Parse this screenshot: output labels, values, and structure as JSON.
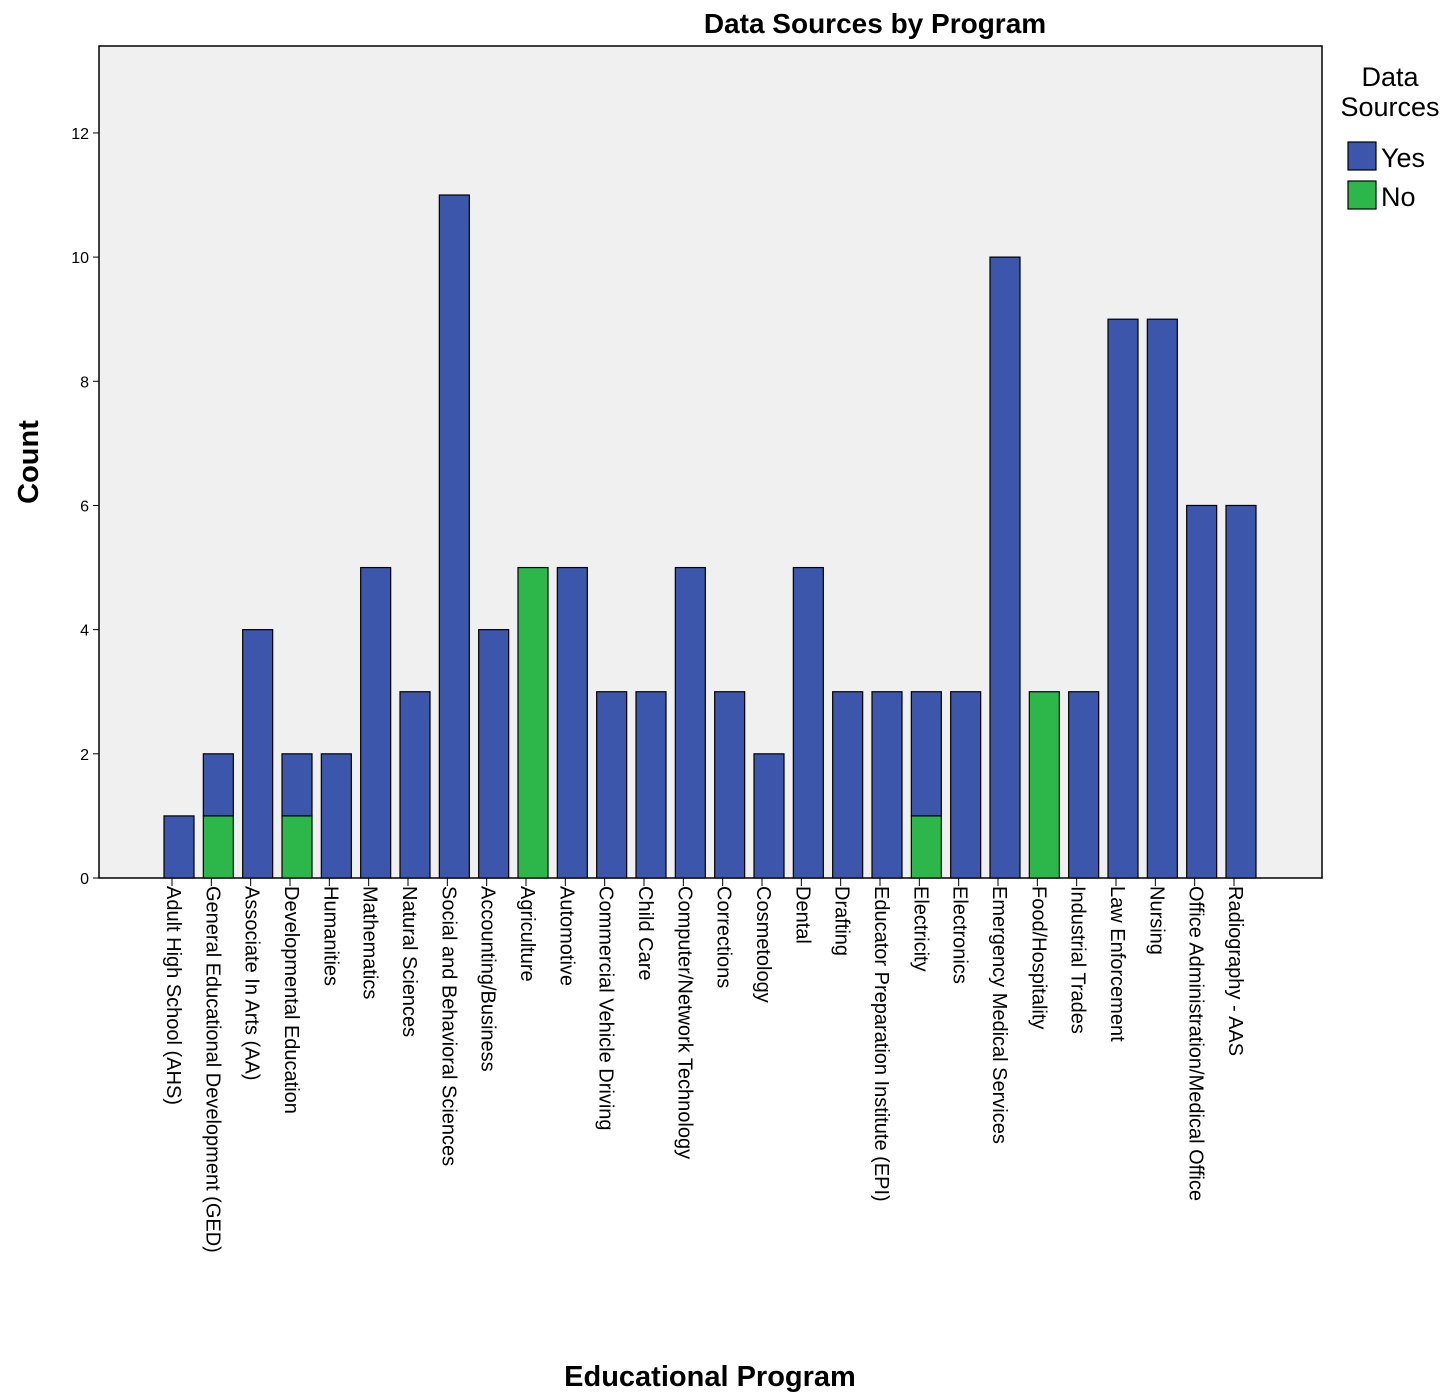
{
  "chart_data": {
    "type": "bar",
    "stacked": true,
    "title": "Data Sources by Program",
    "xlabel": "Educational Program",
    "ylabel": "Count",
    "ylim": [
      0,
      13.4
    ],
    "yticks": [
      0,
      2,
      4,
      6,
      8,
      10,
      12
    ],
    "grid": false,
    "legend": {
      "title_lines": [
        "Data",
        "Sources"
      ],
      "placement": "right"
    },
    "categories": [
      "Adult High School (AHS)",
      "General Educational Development (GED)",
      "Associate In Arts (AA)",
      "Developmental Education",
      "Humanities",
      "Mathematics",
      "Natural Sciences",
      "Social and Behavioral Sciences",
      "Accounting/Business",
      "Agriculture",
      "Automotive",
      "Commercial Vehicle Driving",
      "Child Care",
      "Computer/Network Technology",
      "Corrections",
      "Cosmetology",
      "Dental",
      "Drafting",
      "Educator Preparation Institute (EPI)",
      "Electricity",
      "Electronics",
      "Emergency Medical Services",
      "Food/Hospitality",
      "Industrial Trades",
      "Law Enforcement",
      "Nursing",
      "Office Administration/Medical Office",
      "Radiography - AAS"
    ],
    "series": [
      {
        "name": "Yes",
        "color": "#3c56ab",
        "values": [
          1,
          1,
          4,
          1,
          2,
          5,
          3,
          11,
          4,
          0,
          5,
          3,
          3,
          5,
          3,
          2,
          5,
          3,
          3,
          2,
          3,
          10,
          0,
          3,
          9,
          9,
          6,
          6
        ]
      },
      {
        "name": "No",
        "color": "#2db74a",
        "values": [
          0,
          1,
          0,
          1,
          0,
          0,
          0,
          0,
          0,
          5,
          0,
          0,
          0,
          0,
          0,
          0,
          0,
          0,
          0,
          1,
          0,
          0,
          3,
          0,
          0,
          0,
          0,
          0
        ]
      }
    ],
    "plot_background": "#f0f0f0"
  }
}
